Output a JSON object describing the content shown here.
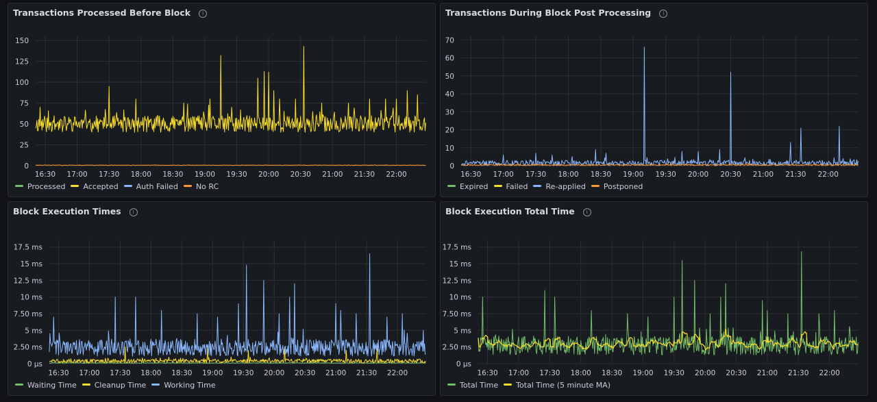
{
  "panels": [
    {
      "title": "Transactions Processed Before Block"
    },
    {
      "title": "Transactions During Block Post Processing"
    },
    {
      "title": "Block Execution Times"
    },
    {
      "title": "Block Execution Total Time"
    }
  ],
  "colors": {
    "green": "#73bf69",
    "yellow": "#fade2a",
    "blue": "#8ab8ff",
    "orange": "#ff9830",
    "grid": "#2c2f35",
    "background": "#181b1f"
  },
  "icons": {
    "info": "info-icon"
  },
  "chart_data": [
    {
      "type": "line",
      "title": "Transactions Processed Before Block",
      "xlabel": "",
      "ylabel": "",
      "x_ticks": [
        "16:30",
        "17:00",
        "17:30",
        "18:00",
        "18:30",
        "19:00",
        "19:30",
        "20:00",
        "20:30",
        "21:00",
        "21:30",
        "22:00"
      ],
      "y_ticks": [
        "0",
        "25",
        "50",
        "75",
        "100",
        "125",
        "150"
      ],
      "ylim": [
        0,
        155
      ],
      "xlim": [
        "16:21",
        "22:28"
      ],
      "grid": true,
      "legend_position": "bottom",
      "legend": [
        "Processed",
        "Accepted",
        "Auth Failed",
        "No RC"
      ],
      "series": [
        {
          "name": "Processed",
          "color": "#73bf69",
          "points": []
        },
        {
          "name": "Accepted",
          "color": "#fade2a",
          "base": 50,
          "noise": 10,
          "seed": 11,
          "spikes": [
            [
              "16:25",
              70
            ],
            [
              "17:30",
              95
            ],
            [
              "17:55",
              80
            ],
            [
              "18:40",
              75
            ],
            [
              "19:05",
              80
            ],
            [
              "19:15",
              132
            ],
            [
              "19:25",
              70
            ],
            [
              "19:50",
              105
            ],
            [
              "19:56",
              113
            ],
            [
              "20:00",
              112
            ],
            [
              "20:05",
              90
            ],
            [
              "20:10",
              80
            ],
            [
              "20:25",
              80
            ],
            [
              "20:33",
              143
            ],
            [
              "20:50",
              75
            ],
            [
              "21:15",
              75
            ],
            [
              "21:35",
              80
            ],
            [
              "21:50",
              80
            ],
            [
              "22:00",
              80
            ],
            [
              "22:10",
              90
            ],
            [
              "22:20",
              85
            ]
          ],
          "points": []
        },
        {
          "name": "Auth Failed",
          "color": "#8ab8ff",
          "points": []
        },
        {
          "name": "No RC",
          "color": "#ff9830",
          "base": 0.6,
          "noise": 0.3,
          "seed": 13,
          "points": []
        }
      ]
    },
    {
      "type": "line",
      "title": "Transactions During Block Post Processing",
      "xlabel": "",
      "ylabel": "",
      "x_ticks": [
        "16:30",
        "17:00",
        "17:30",
        "18:00",
        "18:30",
        "19:00",
        "19:30",
        "20:00",
        "20:30",
        "21:00",
        "21:30",
        "22:00"
      ],
      "y_ticks": [
        "0",
        "10",
        "20",
        "30",
        "40",
        "50",
        "60",
        "70"
      ],
      "ylim": [
        0,
        72
      ],
      "xlim": [
        "16:21",
        "22:28"
      ],
      "grid": true,
      "legend_position": "bottom",
      "legend": [
        "Expired",
        "Failed",
        "Re-applied",
        "Postponed"
      ],
      "series": [
        {
          "name": "Expired",
          "color": "#73bf69",
          "points": []
        },
        {
          "name": "Failed",
          "color": "#fade2a",
          "points": []
        },
        {
          "name": "Re-applied",
          "color": "#8ab8ff",
          "base": 1.5,
          "noise": 1.5,
          "seed": 21,
          "spikes": [
            [
              "17:00",
              6
            ],
            [
              "17:30",
              7
            ],
            [
              "17:45",
              6
            ],
            [
              "18:25",
              9
            ],
            [
              "18:35",
              7
            ],
            [
              "19:10",
              66
            ],
            [
              "19:45",
              8
            ],
            [
              "20:00",
              8
            ],
            [
              "20:20",
              9
            ],
            [
              "20:30",
              52
            ],
            [
              "21:25",
              13
            ],
            [
              "21:35",
              21
            ],
            [
              "22:10",
              22
            ],
            [
              "22:14",
              4
            ]
          ],
          "points": []
        },
        {
          "name": "Postponed",
          "color": "#ff9830",
          "base": 0.4,
          "noise": 0.4,
          "seed": 23,
          "points": []
        }
      ]
    },
    {
      "type": "line",
      "title": "Block Execution Times",
      "xlabel": "",
      "ylabel": "",
      "y_unit": "ms",
      "x_ticks": [
        "16:30",
        "17:00",
        "17:30",
        "18:00",
        "18:30",
        "19:00",
        "19:30",
        "20:00",
        "20:30",
        "21:00",
        "21:30",
        "22:00"
      ],
      "y_ticks": [
        "0 µs",
        "2.50 ms",
        "5 ms",
        "7.50 ms",
        "10 ms",
        "12.5 ms",
        "15 ms",
        "17.5 ms"
      ],
      "ylim": [
        0,
        18.5
      ],
      "xlim": [
        "16:21",
        "22:28"
      ],
      "grid": true,
      "legend_position": "bottom",
      "legend": [
        "Waiting Time",
        "Cleanup Time",
        "Working Time"
      ],
      "series": [
        {
          "name": "Waiting Time",
          "color": "#73bf69",
          "base": 0.1,
          "noise": 0.05,
          "seed": 31,
          "points": []
        },
        {
          "name": "Cleanup Time",
          "color": "#fade2a",
          "base": 0.4,
          "noise": 0.3,
          "seed": 33,
          "spikes": [
            [
              "17:35",
              2.5
            ],
            [
              "18:55",
              2.8
            ],
            [
              "19:35",
              2.0
            ],
            [
              "20:10",
              2.5
            ],
            [
              "21:10",
              2.0
            ],
            [
              "21:40",
              2.5
            ]
          ],
          "points": []
        },
        {
          "name": "Working Time",
          "color": "#8ab8ff",
          "base": 2.4,
          "noise": 1.3,
          "seed": 35,
          "spikes": [
            [
              "16:25",
              7
            ],
            [
              "17:25",
              10
            ],
            [
              "17:45",
              10
            ],
            [
              "18:10",
              8
            ],
            [
              "18:45",
              7.5
            ],
            [
              "19:05",
              7
            ],
            [
              "19:25",
              9
            ],
            [
              "19:33",
              14.8
            ],
            [
              "19:50",
              12.5
            ],
            [
              "20:05",
              7.5
            ],
            [
              "20:15",
              10
            ],
            [
              "20:20",
              12
            ],
            [
              "21:00",
              9
            ],
            [
              "21:05",
              8
            ],
            [
              "21:20",
              7.5
            ],
            [
              "21:33",
              16.5
            ],
            [
              "21:50",
              7
            ],
            [
              "22:05",
              7.5
            ],
            [
              "22:25",
              5
            ]
          ],
          "points": []
        }
      ]
    },
    {
      "type": "line",
      "title": "Block Execution Total Time",
      "xlabel": "",
      "ylabel": "",
      "y_unit": "ms",
      "x_ticks": [
        "16:30",
        "17:00",
        "17:30",
        "18:00",
        "18:30",
        "19:00",
        "19:30",
        "20:00",
        "20:30",
        "21:00",
        "21:30",
        "22:00"
      ],
      "y_ticks": [
        "0 µs",
        "2.50 ms",
        "5 ms",
        "7.50 ms",
        "10 ms",
        "12.5 ms",
        "15 ms",
        "17.5 ms"
      ],
      "ylim": [
        0,
        18.5
      ],
      "xlim": [
        "16:21",
        "22:28"
      ],
      "grid": true,
      "legend_position": "bottom",
      "legend": [
        "Total Time",
        "Total Time (5 minute MA)"
      ],
      "series": [
        {
          "name": "Total Time",
          "color": "#73bf69",
          "base": 2.7,
          "noise": 1.4,
          "seed": 41,
          "spikes": [
            [
              "16:25",
              10
            ],
            [
              "17:25",
              11
            ],
            [
              "17:35",
              10
            ],
            [
              "18:10",
              8
            ],
            [
              "18:45",
              7.5
            ],
            [
              "19:05",
              7
            ],
            [
              "19:30",
              10
            ],
            [
              "19:38",
              15.5
            ],
            [
              "19:50",
              12.5
            ],
            [
              "20:05",
              7.5
            ],
            [
              "20:15",
              10
            ],
            [
              "20:20",
              12
            ],
            [
              "20:55",
              9.5
            ],
            [
              "21:00",
              8
            ],
            [
              "21:20",
              7.5
            ],
            [
              "21:33",
              16.8
            ],
            [
              "21:50",
              7.5
            ],
            [
              "22:05",
              8
            ],
            [
              "22:20",
              5
            ]
          ],
          "points": []
        },
        {
          "name": "Total Time (5 minute MA)",
          "color": "#fade2a",
          "moving_average_of": "Total Time",
          "ma_window": 5,
          "points": []
        }
      ]
    }
  ]
}
